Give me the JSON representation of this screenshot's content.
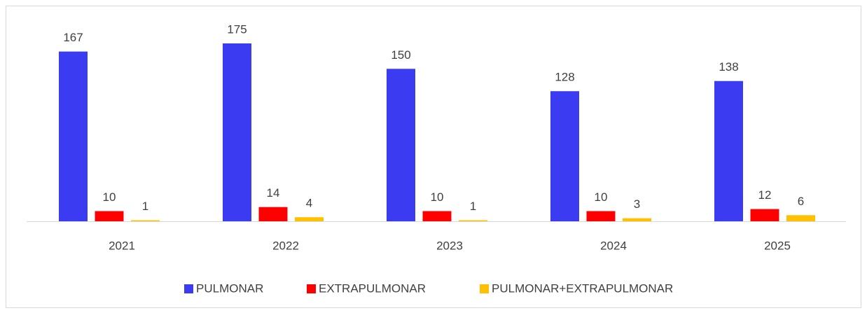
{
  "chart_data": {
    "type": "bar",
    "categories": [
      "2021",
      "2022",
      "2023",
      "2024",
      "2025"
    ],
    "series": [
      {
        "name": "PULMONAR",
        "color": "#3b3bf2",
        "values": [
          167,
          175,
          150,
          128,
          138
        ]
      },
      {
        "name": "EXTRAPULMONAR",
        "color": "#ff0000",
        "values": [
          10,
          14,
          10,
          10,
          12
        ]
      },
      {
        "name": "PULMONAR+EXTRAPULMONAR",
        "color": "#ffc000",
        "values": [
          1,
          4,
          1,
          3,
          6
        ]
      }
    ],
    "legend": "bottom"
  }
}
